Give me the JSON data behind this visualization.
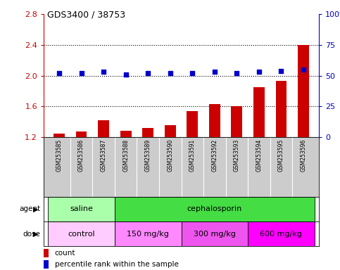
{
  "title": "GDS3400 / 38753",
  "samples": [
    "GSM253585",
    "GSM253586",
    "GSM253587",
    "GSM253588",
    "GSM253589",
    "GSM253590",
    "GSM253591",
    "GSM253592",
    "GSM253593",
    "GSM253594",
    "GSM253595",
    "GSM253596"
  ],
  "bar_values": [
    1.25,
    1.27,
    1.42,
    1.28,
    1.32,
    1.36,
    1.54,
    1.63,
    1.6,
    1.85,
    1.93,
    2.4
  ],
  "dot_values": [
    52,
    52,
    53,
    51,
    52,
    52,
    52,
    53,
    52,
    53,
    54,
    55
  ],
  "bar_color": "#cc0000",
  "dot_color": "#0000cc",
  "ylim_left": [
    1.2,
    2.8
  ],
  "ylim_right": [
    0,
    100
  ],
  "yticks_left": [
    1.2,
    1.6,
    2.0,
    2.4,
    2.8
  ],
  "yticks_right": [
    0,
    25,
    50,
    75,
    100
  ],
  "dotted_lines": [
    1.6,
    2.0,
    2.4
  ],
  "agent_labels": [
    {
      "text": "saline",
      "start": 0,
      "end": 2,
      "color": "#aaffaa"
    },
    {
      "text": "cephalosporin",
      "start": 3,
      "end": 11,
      "color": "#44dd44"
    }
  ],
  "dose_labels": [
    {
      "text": "control",
      "start": 0,
      "end": 2,
      "color": "#ffccff"
    },
    {
      "text": "150 mg/kg",
      "start": 3,
      "end": 5,
      "color": "#ff88ff"
    },
    {
      "text": "300 mg/kg",
      "start": 6,
      "end": 8,
      "color": "#ee55ee"
    },
    {
      "text": "600 mg/kg",
      "start": 9,
      "end": 11,
      "color": "#ff00ff"
    }
  ],
  "bar_color_legend": "#cc0000",
  "dot_color_legend": "#0000cc",
  "tick_color_left": "#cc0000",
  "tick_color_right": "#0000cc",
  "sample_bg_color": "#cccccc",
  "sample_sep_color": "#ffffff"
}
